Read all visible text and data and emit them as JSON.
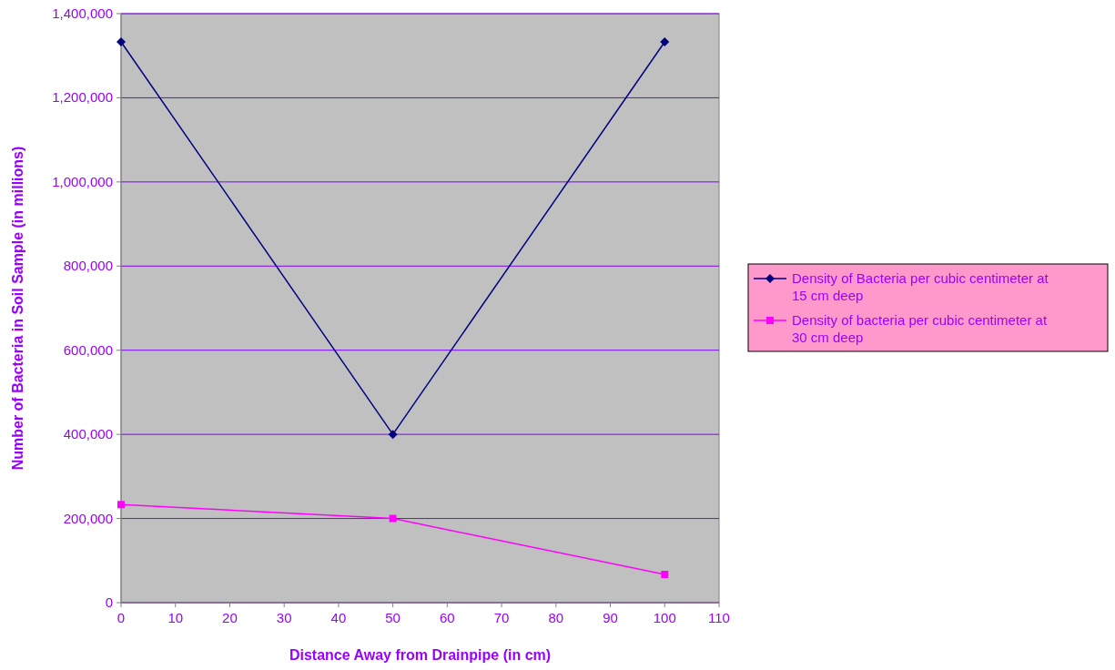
{
  "chart_data": {
    "type": "line",
    "xlabel": "Distance Away from Drainpipe (in cm)",
    "ylabel": "Number of Bacteria in Soil Sample (in millions)",
    "x": [
      0,
      50,
      100
    ],
    "xlim": [
      0,
      110
    ],
    "xticks": [
      0,
      10,
      20,
      30,
      40,
      50,
      60,
      70,
      80,
      90,
      100,
      110
    ],
    "ylim": [
      0,
      1400000
    ],
    "yticks": [
      {
        "value": 0,
        "label": "0"
      },
      {
        "value": 200000,
        "label": "200,000"
      },
      {
        "value": 400000,
        "label": "400,000"
      },
      {
        "value": 600000,
        "label": "600,000"
      },
      {
        "value": 800000,
        "label": "800,000"
      },
      {
        "value": 1000000,
        "label": "1,000,000"
      },
      {
        "value": 1200000,
        "label": "1,200,000"
      },
      {
        "value": 1400000,
        "label": "1,400,000"
      }
    ],
    "grid": "y",
    "legend": "right",
    "series": [
      {
        "name": "Density of Bacteria per cubic centimeter at 15 cm deep",
        "color": "#000080",
        "marker": "diamond",
        "values": [
          1333000,
          400000,
          1333000
        ]
      },
      {
        "name": "Density of bacteria per cubic centimeter at 30 cm deep",
        "color": "#ff00ff",
        "marker": "square",
        "values": [
          233000,
          200000,
          67000
        ]
      }
    ]
  }
}
